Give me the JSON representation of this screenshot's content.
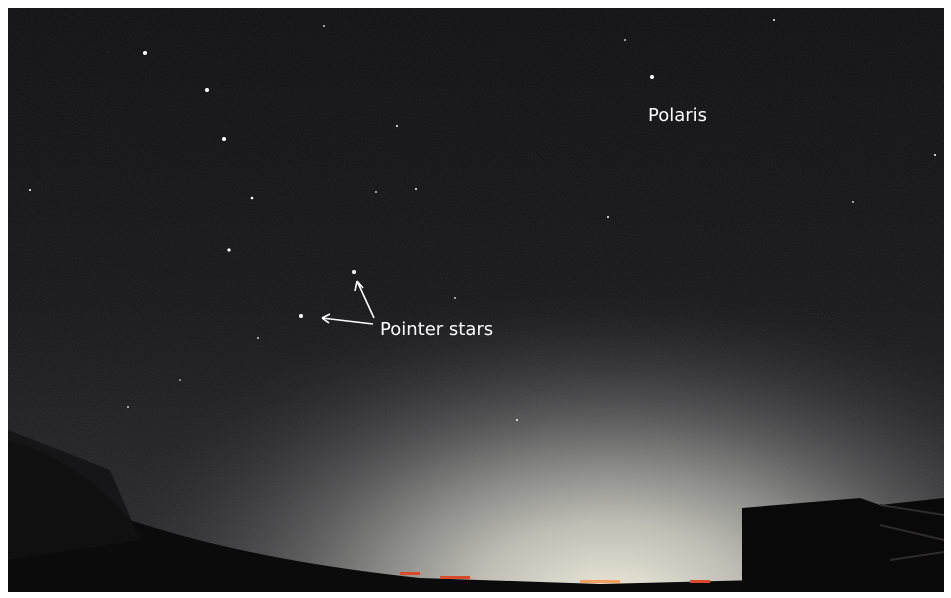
{
  "labels": {
    "polaris": "Polaris",
    "pointer_stars": "Pointer stars"
  }
}
